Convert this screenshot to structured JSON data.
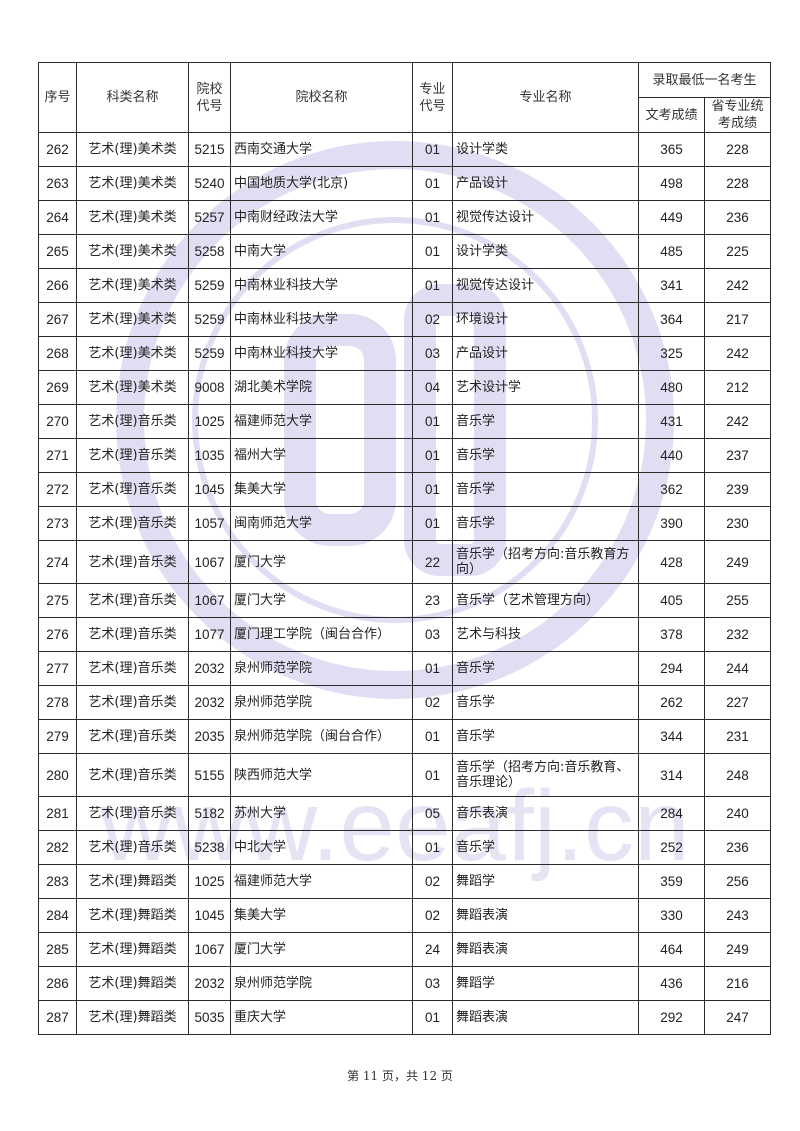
{
  "header": {
    "seq": "序号",
    "category": "科类名称",
    "school_code": "院校代号",
    "school_name": "院校名称",
    "major_code": "专业代号",
    "major_name": "专业名称",
    "min_score_group": "录取最低一名考生",
    "culture_score": "文考成绩",
    "art_score": "省专业统考成绩"
  },
  "rows": [
    {
      "seq": "262",
      "category": "艺术(理)美术类",
      "school_code": "5215",
      "school_name": "西南交通大学",
      "major_code": "01",
      "major_name": "设计学类",
      "culture_score": "365",
      "art_score": "228"
    },
    {
      "seq": "263",
      "category": "艺术(理)美术类",
      "school_code": "5240",
      "school_name": "中国地质大学(北京)",
      "major_code": "01",
      "major_name": "产品设计",
      "culture_score": "498",
      "art_score": "228"
    },
    {
      "seq": "264",
      "category": "艺术(理)美术类",
      "school_code": "5257",
      "school_name": "中南财经政法大学",
      "major_code": "01",
      "major_name": "视觉传达设计",
      "culture_score": "449",
      "art_score": "236"
    },
    {
      "seq": "265",
      "category": "艺术(理)美术类",
      "school_code": "5258",
      "school_name": "中南大学",
      "major_code": "01",
      "major_name": "设计学类",
      "culture_score": "485",
      "art_score": "225"
    },
    {
      "seq": "266",
      "category": "艺术(理)美术类",
      "school_code": "5259",
      "school_name": "中南林业科技大学",
      "major_code": "01",
      "major_name": "视觉传达设计",
      "culture_score": "341",
      "art_score": "242"
    },
    {
      "seq": "267",
      "category": "艺术(理)美术类",
      "school_code": "5259",
      "school_name": "中南林业科技大学",
      "major_code": "02",
      "major_name": "环境设计",
      "culture_score": "364",
      "art_score": "217"
    },
    {
      "seq": "268",
      "category": "艺术(理)美术类",
      "school_code": "5259",
      "school_name": "中南林业科技大学",
      "major_code": "03",
      "major_name": "产品设计",
      "culture_score": "325",
      "art_score": "242"
    },
    {
      "seq": "269",
      "category": "艺术(理)美术类",
      "school_code": "9008",
      "school_name": "湖北美术学院",
      "major_code": "04",
      "major_name": "艺术设计学",
      "culture_score": "480",
      "art_score": "212"
    },
    {
      "seq": "270",
      "category": "艺术(理)音乐类",
      "school_code": "1025",
      "school_name": "福建师范大学",
      "major_code": "01",
      "major_name": "音乐学",
      "culture_score": "431",
      "art_score": "242"
    },
    {
      "seq": "271",
      "category": "艺术(理)音乐类",
      "school_code": "1035",
      "school_name": "福州大学",
      "major_code": "01",
      "major_name": "音乐学",
      "culture_score": "440",
      "art_score": "237"
    },
    {
      "seq": "272",
      "category": "艺术(理)音乐类",
      "school_code": "1045",
      "school_name": "集美大学",
      "major_code": "01",
      "major_name": "音乐学",
      "culture_score": "362",
      "art_score": "239"
    },
    {
      "seq": "273",
      "category": "艺术(理)音乐类",
      "school_code": "1057",
      "school_name": "闽南师范大学",
      "major_code": "01",
      "major_name": "音乐学",
      "culture_score": "390",
      "art_score": "230"
    },
    {
      "seq": "274",
      "category": "艺术(理)音乐类",
      "school_code": "1067",
      "school_name": "厦门大学",
      "major_code": "22",
      "major_name": "音乐学（招考方向:音乐教育方向）",
      "culture_score": "428",
      "art_score": "249"
    },
    {
      "seq": "275",
      "category": "艺术(理)音乐类",
      "school_code": "1067",
      "school_name": "厦门大学",
      "major_code": "23",
      "major_name": "音乐学（艺术管理方向）",
      "culture_score": "405",
      "art_score": "255"
    },
    {
      "seq": "276",
      "category": "艺术(理)音乐类",
      "school_code": "1077",
      "school_name": "厦门理工学院（闽台合作）",
      "major_code": "03",
      "major_name": "艺术与科技",
      "culture_score": "378",
      "art_score": "232"
    },
    {
      "seq": "277",
      "category": "艺术(理)音乐类",
      "school_code": "2032",
      "school_name": "泉州师范学院",
      "major_code": "01",
      "major_name": "音乐学",
      "culture_score": "294",
      "art_score": "244"
    },
    {
      "seq": "278",
      "category": "艺术(理)音乐类",
      "school_code": "2032",
      "school_name": "泉州师范学院",
      "major_code": "02",
      "major_name": "音乐学",
      "culture_score": "262",
      "art_score": "227"
    },
    {
      "seq": "279",
      "category": "艺术(理)音乐类",
      "school_code": "2035",
      "school_name": "泉州师范学院（闽台合作）",
      "major_code": "01",
      "major_name": "音乐学",
      "culture_score": "344",
      "art_score": "231"
    },
    {
      "seq": "280",
      "category": "艺术(理)音乐类",
      "school_code": "5155",
      "school_name": "陕西师范大学",
      "major_code": "01",
      "major_name": "音乐学（招考方向:音乐教育、音乐理论）",
      "culture_score": "314",
      "art_score": "248"
    },
    {
      "seq": "281",
      "category": "艺术(理)音乐类",
      "school_code": "5182",
      "school_name": "苏州大学",
      "major_code": "05",
      "major_name": "音乐表演",
      "culture_score": "284",
      "art_score": "240"
    },
    {
      "seq": "282",
      "category": "艺术(理)音乐类",
      "school_code": "5238",
      "school_name": "中北大学",
      "major_code": "01",
      "major_name": "音乐学",
      "culture_score": "252",
      "art_score": "236"
    },
    {
      "seq": "283",
      "category": "艺术(理)舞蹈类",
      "school_code": "1025",
      "school_name": "福建师范大学",
      "major_code": "02",
      "major_name": "舞蹈学",
      "culture_score": "359",
      "art_score": "256"
    },
    {
      "seq": "284",
      "category": "艺术(理)舞蹈类",
      "school_code": "1045",
      "school_name": "集美大学",
      "major_code": "02",
      "major_name": "舞蹈表演",
      "culture_score": "330",
      "art_score": "243"
    },
    {
      "seq": "285",
      "category": "艺术(理)舞蹈类",
      "school_code": "1067",
      "school_name": "厦门大学",
      "major_code": "24",
      "major_name": "舞蹈表演",
      "culture_score": "464",
      "art_score": "249"
    },
    {
      "seq": "286",
      "category": "艺术(理)舞蹈类",
      "school_code": "2032",
      "school_name": "泉州师范学院",
      "major_code": "03",
      "major_name": "舞蹈学",
      "culture_score": "436",
      "art_score": "216"
    },
    {
      "seq": "287",
      "category": "艺术(理)舞蹈类",
      "school_code": "5035",
      "school_name": "重庆大学",
      "major_code": "01",
      "major_name": "舞蹈表演",
      "culture_score": "292",
      "art_score": "247"
    }
  ],
  "footer": "第 11 页，共 12 页",
  "watermark": {
    "url": "www.eeafj.cn",
    "color": "#c9c3ea"
  }
}
